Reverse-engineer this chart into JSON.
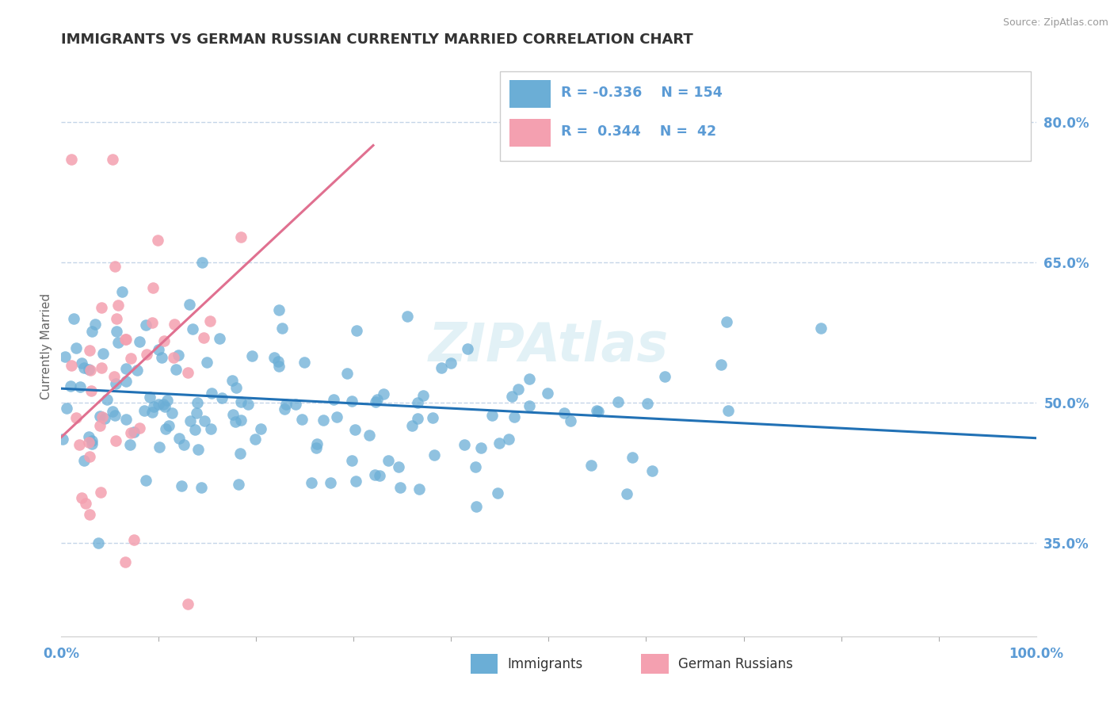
{
  "title": "IMMIGRANTS VS GERMAN RUSSIAN CURRENTLY MARRIED CORRELATION CHART",
  "source": "Source: ZipAtlas.com",
  "ylabel": "Currently Married",
  "watermark": "ZIPAtlas",
  "legend_label1": "Immigrants",
  "legend_label2": "German Russians",
  "blue_color": "#6baed6",
  "pink_color": "#f4a0b0",
  "blue_line_color": "#2171b5",
  "pink_line_color": "#e07090",
  "axis_label_color": "#5b9bd5",
  "title_color": "#333333",
  "ytick_labels": [
    "35.0%",
    "50.0%",
    "65.0%",
    "80.0%"
  ],
  "ytick_values": [
    0.35,
    0.5,
    0.65,
    0.8
  ],
  "xlim": [
    0.0,
    1.0
  ],
  "ylim": [
    0.25,
    0.87
  ],
  "blue_trend_x": [
    0.0,
    1.0
  ],
  "blue_trend_y": [
    0.515,
    0.462
  ],
  "pink_trend_x": [
    0.0,
    0.32
  ],
  "pink_trend_y": [
    0.463,
    0.775
  ]
}
